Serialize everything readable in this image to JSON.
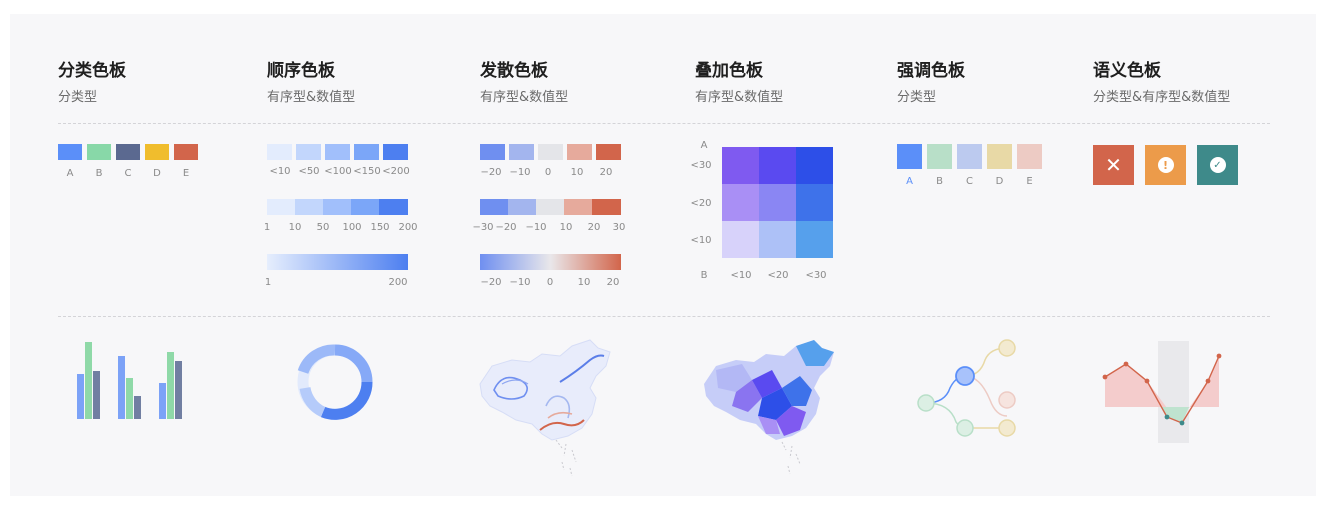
{
  "columns": [
    {
      "title": "分类色板",
      "subtitle": "分类型"
    },
    {
      "title": "顺序色板",
      "subtitle": "有序型&数值型"
    },
    {
      "title": "发散色板",
      "subtitle": "有序型&数值型"
    },
    {
      "title": "叠加色板",
      "subtitle": "有序型&数值型"
    },
    {
      "title": "强调色板",
      "subtitle": "分类型"
    },
    {
      "title": "语义色板",
      "subtitle": "分类型&有序型&数值型"
    }
  ],
  "categorical": {
    "colors": [
      "#5b8ff9",
      "#88d8a8",
      "#5b6990",
      "#f0bd2d",
      "#d2654b"
    ],
    "labels": [
      "A",
      "B",
      "C",
      "D",
      "E"
    ]
  },
  "sequential": {
    "row1": {
      "colors": [
        "#e3ecfd",
        "#c2d6fc",
        "#a1bffb",
        "#7ba6f8",
        "#4d7ff0"
      ],
      "labels": [
        "<10",
        "<50",
        "<100",
        "<150",
        "<200"
      ]
    },
    "row2": {
      "colors": [
        "#e3ecfd",
        "#c2d6fc",
        "#a1bffb",
        "#7ba6f8",
        "#4d7ff0"
      ],
      "labels": [
        "1",
        "10",
        "50",
        "100",
        "150",
        "200"
      ]
    },
    "row3": {
      "labels": [
        "1",
        "200"
      ]
    }
  },
  "diverging": {
    "row1": {
      "colors": [
        "#6f8ff0",
        "#a3b5ee",
        "#e4e5e9",
        "#e6aa9c",
        "#d2654b"
      ],
      "labels": [
        "−20",
        "−10",
        "0",
        "10",
        "20"
      ]
    },
    "row2": {
      "colors": [
        "#6f8ff0",
        "#a3b5ee",
        "#e4e5e9",
        "#e6aa9c",
        "#d2654b"
      ],
      "labels": [
        "−30",
        "−20",
        "−10",
        "10",
        "20",
        "30"
      ]
    },
    "row3": {
      "labels": [
        "−20",
        "−10",
        "0",
        "10",
        "20"
      ]
    }
  },
  "overlay": {
    "axis_a": "A",
    "axis_b": "B",
    "y_labels": [
      "<30",
      "<20",
      "<10"
    ],
    "x_labels": [
      "<10",
      "<20",
      "<30"
    ],
    "grid_colors": [
      [
        "#7f5af0",
        "#5a4af0",
        "#2d4fe8"
      ],
      [
        "#a98ff5",
        "#8a86f3",
        "#3e72ea"
      ],
      [
        "#d7d2fa",
        "#adc1f7",
        "#56a0ec"
      ]
    ]
  },
  "emphasis": {
    "colors": [
      "#5b8ff9",
      "#b8dfc8",
      "#bccaef",
      "#e8d9a6",
      "#edcbc4"
    ],
    "labels": [
      "A",
      "B",
      "C",
      "D",
      "E"
    ],
    "highlight_color": "#5b8ff9"
  },
  "semantic": {
    "badges": [
      {
        "icon": "close-icon",
        "glyph": "✕",
        "color": "#d2654b"
      },
      {
        "icon": "warning-icon",
        "glyph": "!",
        "color": "#ec9b4a"
      },
      {
        "icon": "check-icon",
        "glyph": "✓",
        "color": "#3e8a8a"
      }
    ]
  }
}
